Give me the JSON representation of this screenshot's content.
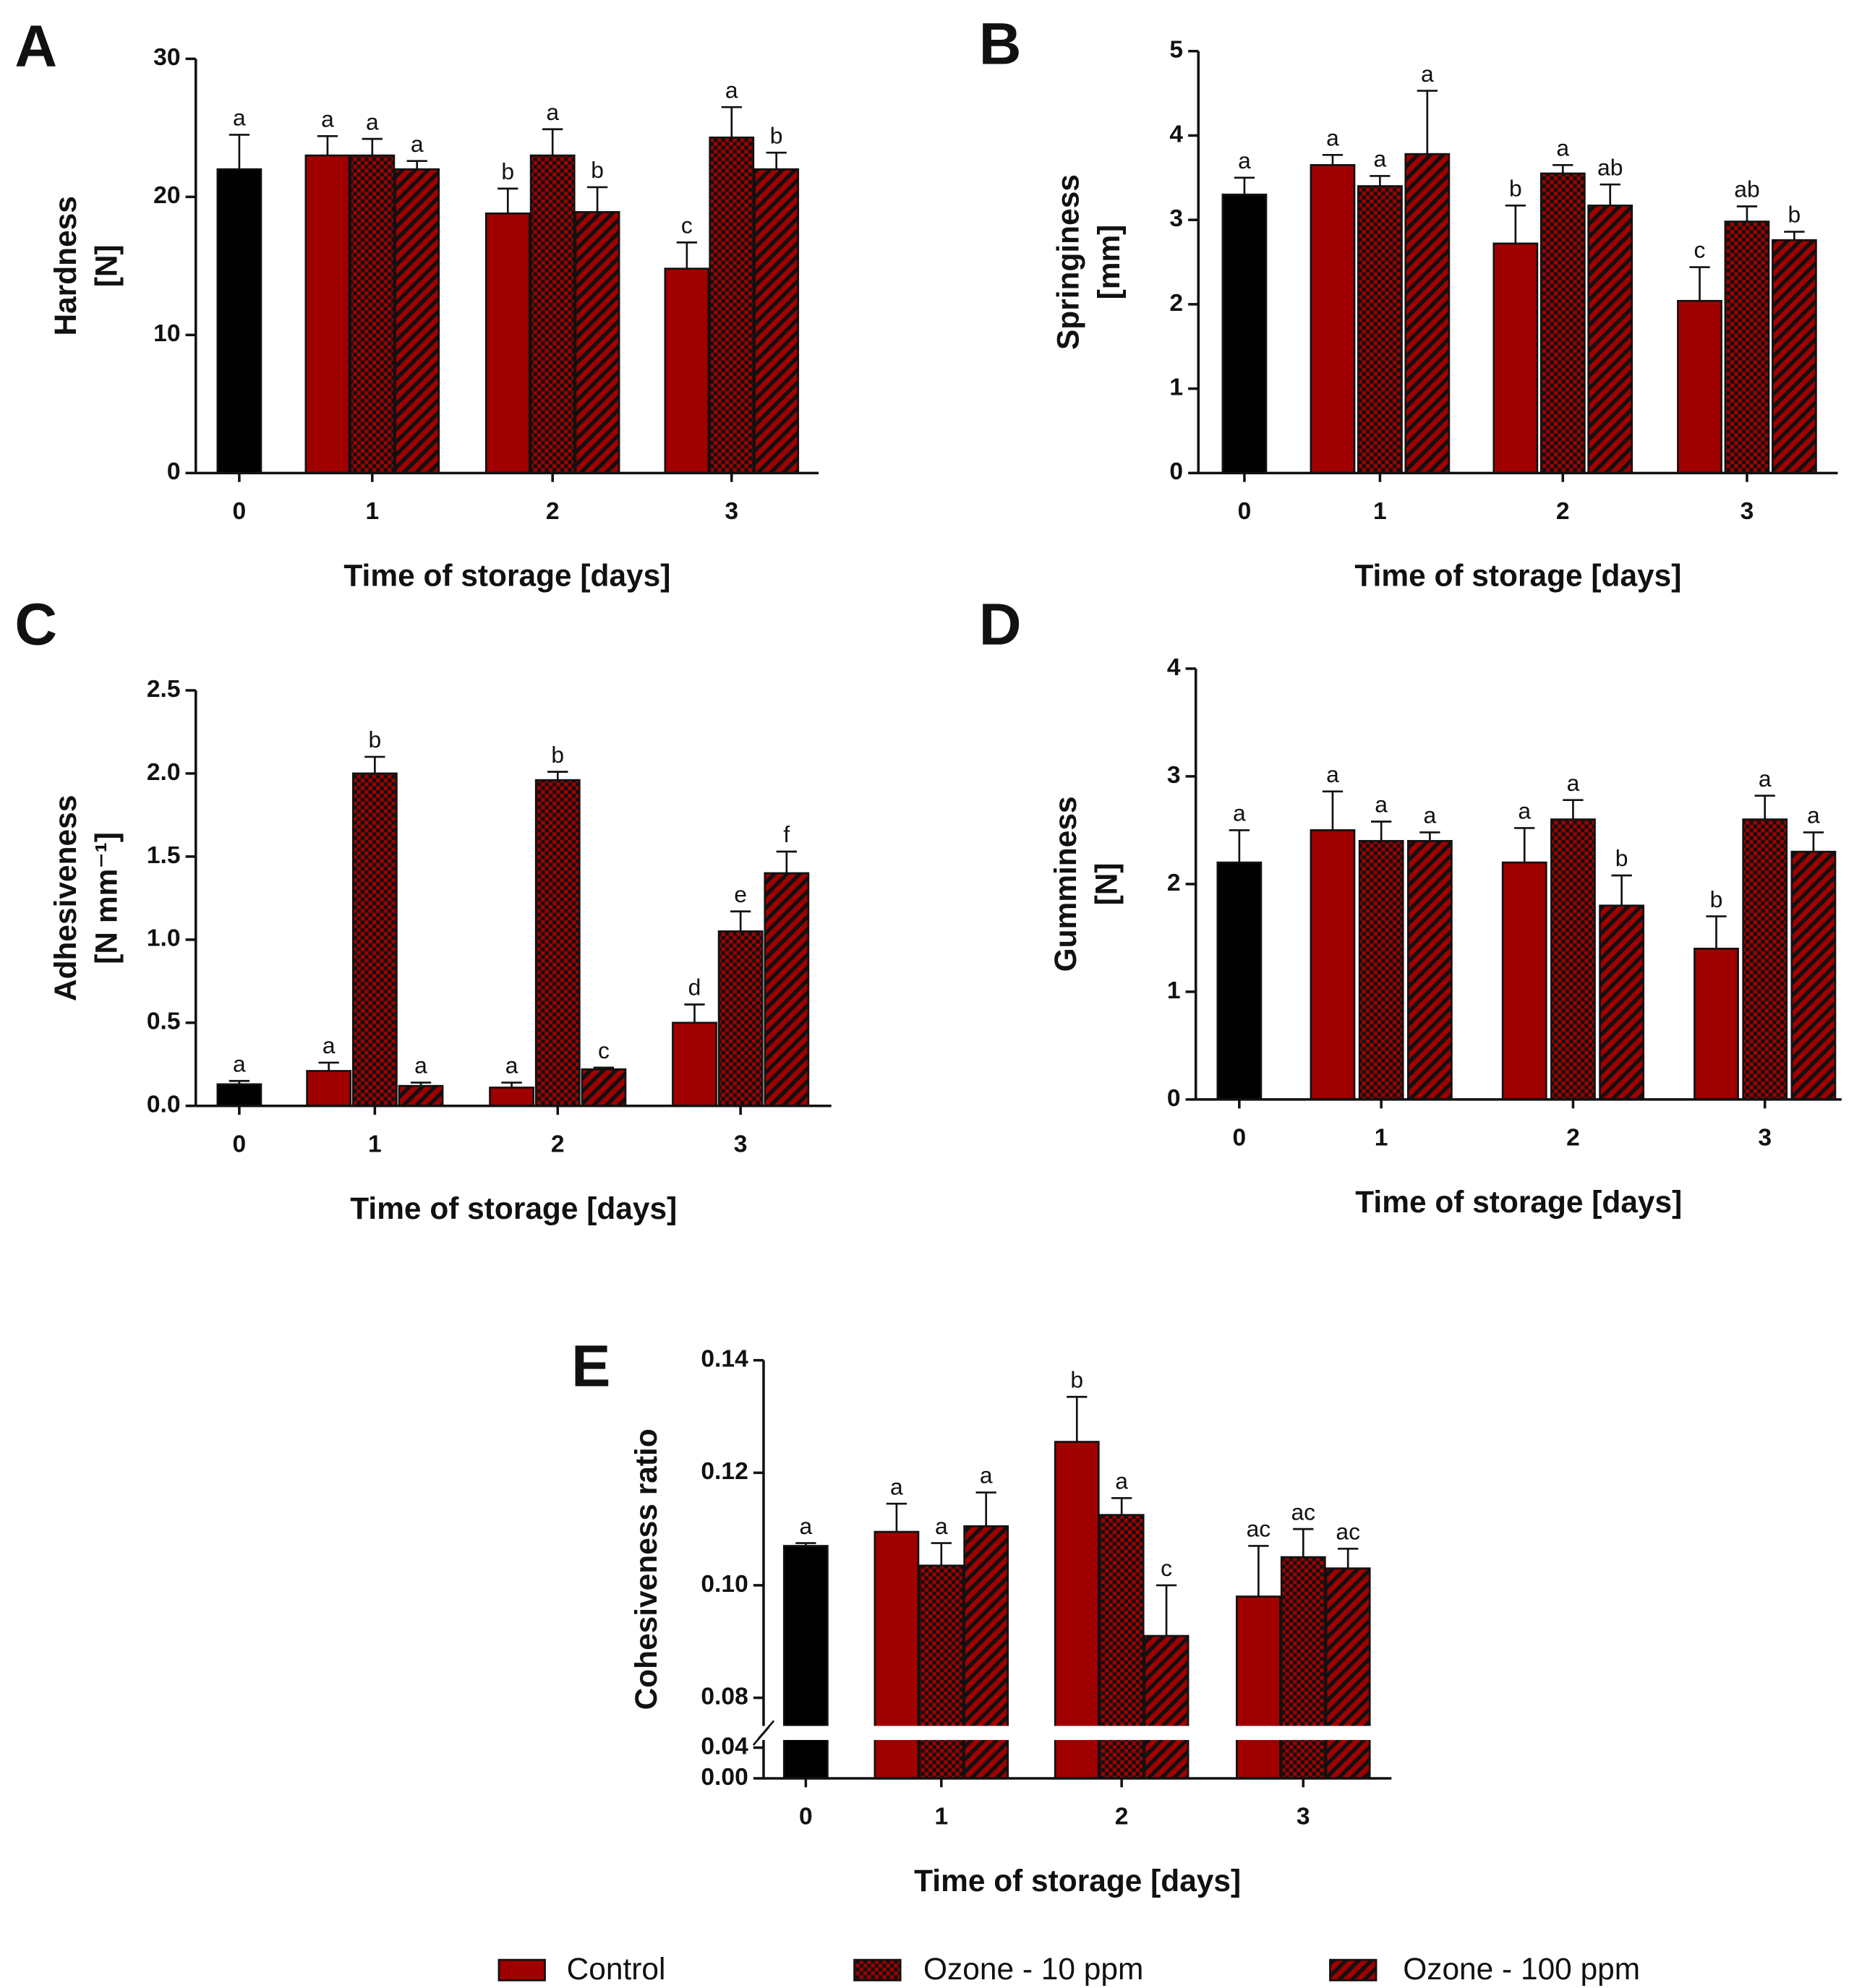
{
  "chart_data": [
    {
      "type": "bar",
      "panel": "A",
      "ylabel": [
        "Hardness",
        "[N]"
      ],
      "xlabel": "Time of storage [days]",
      "categories": [
        "0",
        "1",
        "2",
        "3"
      ],
      "ylim": [
        0,
        30
      ],
      "yticks": [
        0,
        10,
        20,
        30
      ],
      "series": [
        {
          "color": "#000000",
          "pattern": "solid",
          "values": [
            22,
            null,
            null,
            null
          ],
          "errors": [
            2.5,
            null,
            null,
            null
          ],
          "letters": [
            "a",
            null,
            null,
            null
          ]
        },
        {
          "color": "#a00000",
          "pattern": "solid",
          "values": [
            null,
            23,
            18.8,
            14.8
          ],
          "errors": [
            null,
            1.4,
            1.8,
            1.9
          ],
          "letters": [
            null,
            "a",
            "b",
            "c"
          ]
        },
        {
          "color": "#a00000",
          "pattern": "check",
          "values": [
            null,
            23,
            23,
            24.3
          ],
          "errors": [
            null,
            1.2,
            1.9,
            2.2
          ],
          "letters": [
            null,
            "a",
            "a",
            "a"
          ]
        },
        {
          "color": "#a00000",
          "pattern": "stripe",
          "values": [
            null,
            22,
            18.9,
            22
          ],
          "errors": [
            null,
            0.6,
            1.8,
            1.2
          ],
          "letters": [
            null,
            "a",
            "b",
            "b"
          ]
        }
      ]
    },
    {
      "type": "bar",
      "panel": "B",
      "ylabel": [
        "Springiness",
        "[mm]"
      ],
      "xlabel": "Time of storage [days]",
      "categories": [
        "0",
        "1",
        "2",
        "3"
      ],
      "ylim": [
        0,
        5
      ],
      "yticks": [
        0,
        1,
        2,
        3,
        4,
        5
      ],
      "series": [
        {
          "color": "#000000",
          "pattern": "solid",
          "values": [
            3.3,
            null,
            null,
            null
          ],
          "errors": [
            0.2,
            null,
            null,
            null
          ],
          "letters": [
            "a",
            null,
            null,
            null
          ]
        },
        {
          "color": "#a00000",
          "pattern": "solid",
          "values": [
            null,
            3.65,
            2.72,
            2.04
          ],
          "errors": [
            null,
            0.12,
            0.45,
            0.4
          ],
          "letters": [
            null,
            "a",
            "b",
            "c"
          ]
        },
        {
          "color": "#a00000",
          "pattern": "check",
          "values": [
            null,
            3.4,
            3.55,
            2.98
          ],
          "errors": [
            null,
            0.12,
            0.1,
            0.18
          ],
          "letters": [
            null,
            "a",
            "a",
            "ab"
          ]
        },
        {
          "color": "#a00000",
          "pattern": "stripe",
          "values": [
            null,
            3.78,
            3.17,
            2.76
          ],
          "errors": [
            null,
            0.75,
            0.25,
            0.1
          ],
          "letters": [
            null,
            "a",
            "ab",
            "b"
          ]
        }
      ]
    },
    {
      "type": "bar",
      "panel": "C",
      "ylabel": [
        "Adhesiveness",
        "[N mm⁻¹]"
      ],
      "xlabel": "Time of storage [days]",
      "categories": [
        "0",
        "1",
        "2",
        "3"
      ],
      "ylim": [
        0,
        2.5
      ],
      "yticks": [
        {
          "value": 0,
          "label": "0.0"
        },
        0.5,
        {
          "value": 1,
          "label": "1.0"
        },
        1.5,
        {
          "value": 2,
          "label": "2.0"
        },
        2.5
      ],
      "series": [
        {
          "color": "#000000",
          "pattern": "solid",
          "values": [
            0.13,
            null,
            null,
            null
          ],
          "errors": [
            0.02,
            null,
            null,
            null
          ],
          "letters": [
            "a",
            null,
            null,
            null
          ]
        },
        {
          "color": "#a00000",
          "pattern": "solid",
          "values": [
            null,
            0.21,
            0.11,
            0.5
          ],
          "errors": [
            null,
            0.05,
            0.03,
            0.11
          ],
          "letters": [
            null,
            "a",
            "a",
            "d"
          ]
        },
        {
          "color": "#a00000",
          "pattern": "check",
          "values": [
            null,
            2.0,
            1.96,
            1.05
          ],
          "errors": [
            null,
            0.1,
            0.05,
            0.12
          ],
          "letters": [
            null,
            "b",
            "b",
            "e"
          ]
        },
        {
          "color": "#a00000",
          "pattern": "stripe",
          "values": [
            null,
            0.12,
            0.22,
            1.4
          ],
          "errors": [
            null,
            0.02,
            0.01,
            0.13
          ],
          "letters": [
            null,
            "a",
            "c",
            "f"
          ]
        }
      ]
    },
    {
      "type": "bar",
      "panel": "D",
      "ylabel": [
        "Gumminess",
        "[N]"
      ],
      "xlabel": "Time of storage [days]",
      "categories": [
        "0",
        "1",
        "2",
        "3"
      ],
      "ylim": [
        0,
        4
      ],
      "yticks": [
        0,
        1,
        2,
        3,
        4
      ],
      "series": [
        {
          "color": "#000000",
          "pattern": "solid",
          "values": [
            2.2,
            null,
            null,
            null
          ],
          "errors": [
            0.3,
            null,
            null,
            null
          ],
          "letters": [
            "a",
            null,
            null,
            null
          ]
        },
        {
          "color": "#a00000",
          "pattern": "solid",
          "values": [
            null,
            2.5,
            2.2,
            1.4
          ],
          "errors": [
            null,
            0.36,
            0.32,
            0.3
          ],
          "letters": [
            null,
            "a",
            "a",
            "b"
          ]
        },
        {
          "color": "#a00000",
          "pattern": "check",
          "values": [
            null,
            2.4,
            2.6,
            2.6
          ],
          "errors": [
            null,
            0.18,
            0.18,
            0.22
          ],
          "letters": [
            null,
            "a",
            "a",
            "a"
          ]
        },
        {
          "color": "#a00000",
          "pattern": "stripe",
          "values": [
            null,
            2.4,
            1.8,
            2.3
          ],
          "errors": [
            null,
            0.08,
            0.28,
            0.18
          ],
          "letters": [
            null,
            "a",
            "b",
            "a"
          ]
        }
      ]
    },
    {
      "type": "bar",
      "panel": "E",
      "ylabel": [
        "Cohesiveness ratio"
      ],
      "xlabel": "Time of storage [days]",
      "categories": [
        "0",
        "1",
        "2",
        "3"
      ],
      "ylim": [
        0,
        0.14
      ],
      "ybreak": [
        0.05,
        0.075
      ],
      "yticks": [
        {
          "value": 0,
          "label": "0.00"
        },
        0.04,
        0.08,
        {
          "value": 0.1,
          "label": "0.10"
        },
        0.12,
        0.14
      ],
      "series": [
        {
          "color": "#000000",
          "pattern": "solid",
          "values": [
            0.107,
            null,
            null,
            null
          ],
          "errors": [
            0.0005,
            null,
            null,
            null
          ],
          "letters": [
            "a",
            null,
            null,
            null
          ]
        },
        {
          "color": "#a00000",
          "pattern": "solid",
          "values": [
            null,
            0.1095,
            0.1255,
            0.098
          ],
          "errors": [
            null,
            0.005,
            0.008,
            0.009
          ],
          "letters": [
            null,
            "a",
            "b",
            "ac"
          ]
        },
        {
          "color": "#a00000",
          "pattern": "check",
          "values": [
            null,
            0.1035,
            0.1125,
            0.105
          ],
          "errors": [
            null,
            0.004,
            0.003,
            0.005
          ],
          "letters": [
            null,
            "a",
            "a",
            "ac"
          ]
        },
        {
          "color": "#a00000",
          "pattern": "stripe",
          "values": [
            null,
            0.1105,
            0.091,
            0.103
          ],
          "errors": [
            null,
            0.006,
            0.009,
            0.0035
          ],
          "letters": [
            null,
            "a",
            "c",
            "ac"
          ]
        }
      ]
    }
  ],
  "legend": [
    {
      "name": "Control",
      "color": "#a00000",
      "pattern": "solid"
    },
    {
      "name": "Ozone - 10 ppm",
      "color": "#a00000",
      "pattern": "check"
    },
    {
      "name": "Ozone - 100 ppm",
      "color": "#a00000",
      "pattern": "stripe"
    }
  ]
}
